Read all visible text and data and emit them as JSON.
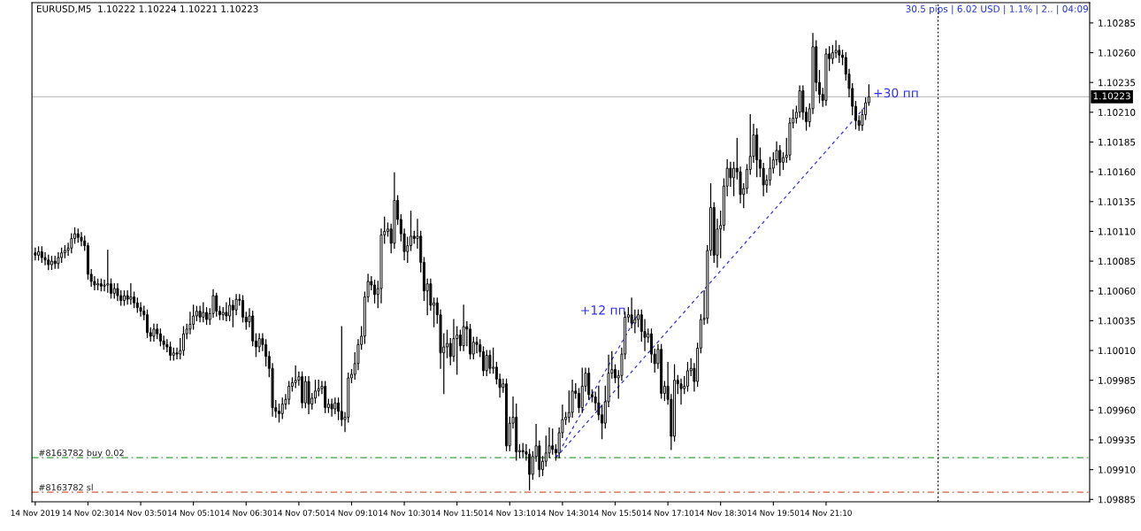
{
  "chart_data": {
    "type": "candlestick",
    "title": "EURUSD,M5  1.10222 1.10224 1.10221 1.10223",
    "x": [
      "2019-11-14T01:10",
      "2019-11-14T01:15",
      "2019-11-14T01:20",
      "2019-11-14T01:25",
      "2019-11-14T01:30",
      "2019-11-14T01:35",
      "2019-11-14T01:40",
      "2019-11-14T01:45",
      "2019-11-14T01:50",
      "2019-11-14T01:55",
      "2019-11-14T02:00",
      "2019-11-14T02:05",
      "2019-11-14T02:10",
      "2019-11-14T02:15",
      "2019-11-14T02:20",
      "2019-11-14T02:25",
      "2019-11-14T02:30",
      "2019-11-14T02:35",
      "2019-11-14T02:40",
      "2019-11-14T02:45",
      "2019-11-14T02:50",
      "2019-11-14T02:55",
      "2019-11-14T03:00",
      "2019-11-14T03:05",
      "2019-11-14T03:10",
      "2019-11-14T03:15",
      "2019-11-14T03:20",
      "2019-11-14T03:25",
      "2019-11-14T03:30",
      "2019-11-14T03:35",
      "2019-11-14T03:40",
      "2019-11-14T03:45",
      "2019-11-14T03:50",
      "2019-11-14T03:55",
      "2019-11-14T04:00",
      "2019-11-14T04:05",
      "2019-11-14T04:10",
      "2019-11-14T04:15",
      "2019-11-14T04:20",
      "2019-11-14T04:25",
      "2019-11-14T04:30",
      "2019-11-14T04:35",
      "2019-11-14T04:40",
      "2019-11-14T04:45",
      "2019-11-14T04:50",
      "2019-11-14T04:55",
      "2019-11-14T05:00",
      "2019-11-14T05:05",
      "2019-11-14T05:10",
      "2019-11-14T05:15",
      "2019-11-14T05:20",
      "2019-11-14T05:25",
      "2019-11-14T05:30",
      "2019-11-14T05:35",
      "2019-11-14T05:40",
      "2019-11-14T05:45",
      "2019-11-14T05:50",
      "2019-11-14T05:55",
      "2019-11-14T06:00",
      "2019-11-14T06:05",
      "2019-11-14T06:10",
      "2019-11-14T06:15",
      "2019-11-14T06:20",
      "2019-11-14T06:25",
      "2019-11-14T06:30",
      "2019-11-14T06:35",
      "2019-11-14T06:40",
      "2019-11-14T06:45",
      "2019-11-14T06:50",
      "2019-11-14T06:55",
      "2019-11-14T07:00",
      "2019-11-14T07:05",
      "2019-11-14T07:10",
      "2019-11-14T07:15",
      "2019-11-14T07:20",
      "2019-11-14T07:25",
      "2019-11-14T07:30",
      "2019-11-14T07:35",
      "2019-11-14T07:40",
      "2019-11-14T07:45",
      "2019-11-14T07:50",
      "2019-11-14T07:55",
      "2019-11-14T08:00",
      "2019-11-14T08:05",
      "2019-11-14T08:10",
      "2019-11-14T08:15",
      "2019-11-14T08:20",
      "2019-11-14T08:25",
      "2019-11-14T08:30",
      "2019-11-14T08:35",
      "2019-11-14T08:40",
      "2019-11-14T08:45",
      "2019-11-14T08:50",
      "2019-11-14T08:55",
      "2019-11-14T09:00",
      "2019-11-14T09:05",
      "2019-11-14T09:10",
      "2019-11-14T09:15",
      "2019-11-14T09:20",
      "2019-11-14T09:25",
      "2019-11-14T09:30",
      "2019-11-14T09:35",
      "2019-11-14T09:40",
      "2019-11-14T09:45",
      "2019-11-14T09:50",
      "2019-11-14T09:55",
      "2019-11-14T10:00",
      "2019-11-14T10:05",
      "2019-11-14T10:10",
      "2019-11-14T10:15",
      "2019-11-14T10:20",
      "2019-11-14T10:25",
      "2019-11-14T10:30",
      "2019-11-14T10:35",
      "2019-11-14T10:40",
      "2019-11-14T10:45",
      "2019-11-14T10:50",
      "2019-11-14T10:55",
      "2019-11-14T11:00",
      "2019-11-14T11:05",
      "2019-11-14T11:10",
      "2019-11-14T11:15",
      "2019-11-14T11:20",
      "2019-11-14T11:25",
      "2019-11-14T11:30",
      "2019-11-14T11:35",
      "2019-11-14T11:40",
      "2019-11-14T11:45",
      "2019-11-14T11:50",
      "2019-11-14T11:55",
      "2019-11-14T12:00",
      "2019-11-14T12:05",
      "2019-11-14T12:10",
      "2019-11-14T12:15",
      "2019-11-14T12:20",
      "2019-11-14T12:25",
      "2019-11-14T12:30",
      "2019-11-14T12:35",
      "2019-11-14T12:40",
      "2019-11-14T12:45",
      "2019-11-14T12:50",
      "2019-11-14T12:55",
      "2019-11-14T13:00",
      "2019-11-14T13:05",
      "2019-11-14T13:10",
      "2019-11-14T13:15",
      "2019-11-14T13:20",
      "2019-11-14T13:25",
      "2019-11-14T13:30",
      "2019-11-14T13:35",
      "2019-11-14T13:40",
      "2019-11-14T13:45",
      "2019-11-14T13:50",
      "2019-11-14T13:55",
      "2019-11-14T14:00",
      "2019-11-14T14:05",
      "2019-11-14T14:10",
      "2019-11-14T14:15",
      "2019-11-14T14:20",
      "2019-11-14T14:25",
      "2019-11-14T14:30",
      "2019-11-14T14:35",
      "2019-11-14T14:40",
      "2019-11-14T14:45",
      "2019-11-14T14:50",
      "2019-11-14T14:55",
      "2019-11-14T15:00",
      "2019-11-14T15:05",
      "2019-11-14T15:10",
      "2019-11-14T15:15",
      "2019-11-14T15:20",
      "2019-11-14T15:25",
      "2019-11-14T15:30",
      "2019-11-14T15:35",
      "2019-11-14T15:40",
      "2019-11-14T15:45",
      "2019-11-14T15:50",
      "2019-11-14T15:55",
      "2019-11-14T16:00",
      "2019-11-14T16:05",
      "2019-11-14T16:10",
      "2019-11-14T16:15",
      "2019-11-14T16:20",
      "2019-11-14T16:25",
      "2019-11-14T16:30",
      "2019-11-14T16:35",
      "2019-11-14T16:40",
      "2019-11-14T16:45",
      "2019-11-14T16:50",
      "2019-11-14T16:55",
      "2019-11-14T17:00",
      "2019-11-14T17:05",
      "2019-11-14T17:10",
      "2019-11-14T17:15",
      "2019-11-14T17:20",
      "2019-11-14T17:25",
      "2019-11-14T17:30",
      "2019-11-14T17:35",
      "2019-11-14T17:40",
      "2019-11-14T17:45",
      "2019-11-14T17:50",
      "2019-11-14T17:55",
      "2019-11-14T18:00",
      "2019-11-14T18:05",
      "2019-11-14T18:10",
      "2019-11-14T18:15",
      "2019-11-14T18:20",
      "2019-11-14T18:25",
      "2019-11-14T18:30",
      "2019-11-14T18:35",
      "2019-11-14T18:40",
      "2019-11-14T18:45",
      "2019-11-14T18:50",
      "2019-11-14T18:55",
      "2019-11-14T19:00",
      "2019-11-14T19:05",
      "2019-11-14T19:10",
      "2019-11-14T19:15",
      "2019-11-14T19:20",
      "2019-11-14T19:25",
      "2019-11-14T19:30",
      "2019-11-14T19:35",
      "2019-11-14T19:40",
      "2019-11-14T19:45",
      "2019-11-14T19:50",
      "2019-11-14T19:55",
      "2019-11-14T20:00",
      "2019-11-14T20:05",
      "2019-11-14T20:10",
      "2019-11-14T20:15",
      "2019-11-14T20:20",
      "2019-11-14T20:25",
      "2019-11-14T20:30",
      "2019-11-14T20:35",
      "2019-11-14T20:40",
      "2019-11-14T20:45",
      "2019-11-14T20:50",
      "2019-11-14T20:55",
      "2019-11-14T21:00",
      "2019-11-14T21:05",
      "2019-11-14T21:10",
      "2019-11-14T21:15",
      "2019-11-14T21:20",
      "2019-11-14T21:25",
      "2019-11-14T21:30",
      "2019-11-14T21:35",
      "2019-11-14T21:40",
      "2019-11-14T21:45",
      "2019-11-14T21:50",
      "2019-11-14T21:55",
      "2019-11-14T22:00",
      "2019-11-14T22:05",
      "2019-11-14T22:10",
      "2019-11-14T22:15"
    ],
    "ohlc": [
      [
        1.10092,
        1.10096,
        1.10086,
        1.1009
      ],
      [
        1.1009,
        1.10097,
        1.10086,
        1.10093
      ],
      [
        1.10093,
        1.10097,
        1.10084,
        1.10088
      ],
      [
        1.10088,
        1.10092,
        1.10082,
        1.10086
      ],
      [
        1.10086,
        1.1009,
        1.10078,
        1.10082
      ],
      [
        1.10082,
        1.10089,
        1.10078,
        1.10085
      ],
      [
        1.10085,
        1.10089,
        1.10079,
        1.10083
      ],
      [
        1.10083,
        1.10092,
        1.10079,
        1.10088
      ],
      [
        1.10088,
        1.10096,
        1.10084,
        1.10092
      ],
      [
        1.10092,
        1.10098,
        1.10088,
        1.10094
      ],
      [
        1.10094,
        1.101,
        1.1009,
        1.10096
      ],
      [
        1.10096,
        1.10108,
        1.10092,
        1.10104
      ],
      [
        1.10104,
        1.10113,
        1.101,
        1.10108
      ],
      [
        1.10108,
        1.10112,
        1.10101,
        1.10105
      ],
      [
        1.10105,
        1.10109,
        1.10098,
        1.10102
      ],
      [
        1.10102,
        1.10106,
        1.10094,
        1.10098
      ],
      [
        1.10098,
        1.101,
        1.1007,
        1.10074
      ],
      [
        1.10074,
        1.10078,
        1.10064,
        1.10068
      ],
      [
        1.10068,
        1.10072,
        1.10061,
        1.10065
      ],
      [
        1.10065,
        1.1007,
        1.10061,
        1.10066
      ],
      [
        1.10066,
        1.1007,
        1.1006,
        1.10064
      ],
      [
        1.10064,
        1.10069,
        1.1006,
        1.10065
      ],
      [
        1.10065,
        1.10094,
        1.10059,
        1.10066
      ],
      [
        1.10066,
        1.1007,
        1.10054,
        1.10058
      ],
      [
        1.10058,
        1.10066,
        1.10054,
        1.10062
      ],
      [
        1.10062,
        1.10066,
        1.10052,
        1.10056
      ],
      [
        1.10056,
        1.1006,
        1.10048,
        1.10052
      ],
      [
        1.10052,
        1.1006,
        1.10048,
        1.10056
      ],
      [
        1.10056,
        1.1006,
        1.10049,
        1.10053
      ],
      [
        1.10053,
        1.10066,
        1.10049,
        1.10055
      ],
      [
        1.10055,
        1.10059,
        1.10046,
        1.1005
      ],
      [
        1.1005,
        1.10054,
        1.10042,
        1.10046
      ],
      [
        1.10046,
        1.1005,
        1.10039,
        1.10043
      ],
      [
        1.10043,
        1.10047,
        1.10036,
        1.1004
      ],
      [
        1.1004,
        1.10044,
        1.10021,
        1.10025
      ],
      [
        1.10025,
        1.10029,
        1.10018,
        1.10022
      ],
      [
        1.10022,
        1.10032,
        1.10018,
        1.10028
      ],
      [
        1.10028,
        1.10032,
        1.1002,
        1.10024
      ],
      [
        1.10024,
        1.10028,
        1.10014,
        1.10018
      ],
      [
        1.10018,
        1.10022,
        1.10011,
        1.10015
      ],
      [
        1.10015,
        1.10019,
        1.10009,
        1.10013
      ],
      [
        1.10013,
        1.10017,
        1.10002,
        1.10006
      ],
      [
        1.10006,
        1.10012,
        1.10002,
        1.10008
      ],
      [
        1.10008,
        1.10012,
        1.10003,
        1.10007
      ],
      [
        1.10007,
        1.1002,
        1.10003,
        1.1001
      ],
      [
        1.1001,
        1.1003,
        1.10006,
        1.10024
      ],
      [
        1.10024,
        1.10032,
        1.1002,
        1.10028
      ],
      [
        1.10028,
        1.10042,
        1.10024,
        1.10032
      ],
      [
        1.10032,
        1.10048,
        1.10028,
        1.10039
      ],
      [
        1.10039,
        1.10047,
        1.10035,
        1.10043
      ],
      [
        1.10043,
        1.10047,
        1.10034,
        1.10038
      ],
      [
        1.10038,
        1.1005,
        1.10034,
        1.10042
      ],
      [
        1.10042,
        1.10046,
        1.10032,
        1.10036
      ],
      [
        1.10036,
        1.10045,
        1.10032,
        1.10041
      ],
      [
        1.10041,
        1.10061,
        1.10038,
        1.10056
      ],
      [
        1.10056,
        1.10058,
        1.10039,
        1.10043
      ],
      [
        1.10043,
        1.10047,
        1.10036,
        1.1004
      ],
      [
        1.1004,
        1.10046,
        1.10036,
        1.10042
      ],
      [
        1.10042,
        1.1005,
        1.10035,
        1.10039
      ],
      [
        1.10039,
        1.10054,
        1.10035,
        1.10048
      ],
      [
        1.10048,
        1.10052,
        1.1003,
        1.10044
      ],
      [
        1.10044,
        1.10057,
        1.1004,
        1.10053
      ],
      [
        1.10053,
        1.10057,
        1.10048,
        1.10052
      ],
      [
        1.10052,
        1.10056,
        1.10034,
        1.10038
      ],
      [
        1.10038,
        1.10042,
        1.10028,
        1.10034
      ],
      [
        1.10034,
        1.10045,
        1.1003,
        1.10039
      ],
      [
        1.10039,
        1.10043,
        1.10014,
        1.10018
      ],
      [
        1.10018,
        1.10024,
        1.10005,
        1.10013
      ],
      [
        1.10013,
        1.10024,
        1.10009,
        1.1002
      ],
      [
        1.1002,
        1.10024,
        1.1001,
        1.10015
      ],
      [
        1.10015,
        1.10019,
        1.09997,
        1.10005
      ],
      [
        1.10005,
        1.10009,
        1.09988,
        1.09995
      ],
      [
        1.09995,
        1.09999,
        1.09955,
        1.09962
      ],
      [
        1.09962,
        1.09968,
        1.09954,
        1.09959
      ],
      [
        1.09959,
        1.09965,
        1.0995,
        1.09957
      ],
      [
        1.09957,
        1.0997,
        1.09953,
        1.09965
      ],
      [
        1.09965,
        1.09973,
        1.09961,
        1.09969
      ],
      [
        1.09969,
        1.09984,
        1.09965,
        1.0998
      ],
      [
        1.0998,
        1.09987,
        1.09976,
        1.09983
      ],
      [
        1.09983,
        1.09997,
        1.09979,
        1.09985
      ],
      [
        1.09985,
        1.09992,
        1.09981,
        1.09988
      ],
      [
        1.09988,
        1.09992,
        1.09962,
        1.09966
      ],
      [
        1.09966,
        1.09988,
        1.09962,
        1.09984
      ],
      [
        1.09984,
        1.09988,
        1.09957,
        1.09965
      ],
      [
        1.09965,
        1.09974,
        1.09961,
        1.0997
      ],
      [
        1.0997,
        1.09985,
        1.09966,
        1.09976
      ],
      [
        1.09976,
        1.09985,
        1.09972,
        1.09978
      ],
      [
        1.09978,
        1.09984,
        1.09974,
        1.0998
      ],
      [
        1.0998,
        1.09984,
        1.09958,
        1.09962
      ],
      [
        1.09962,
        1.09969,
        1.09958,
        1.09965
      ],
      [
        1.09965,
        1.09969,
        1.09955,
        1.09961
      ],
      [
        1.09961,
        1.0997,
        1.09957,
        1.09966
      ],
      [
        1.09966,
        1.0997,
        1.09952,
        1.09959
      ],
      [
        1.09959,
        1.1003,
        1.09947,
        1.09952
      ],
      [
        1.09952,
        1.09958,
        1.09942,
        1.09954
      ],
      [
        1.09954,
        1.09991,
        1.0995,
        1.09987
      ],
      [
        1.09987,
        1.09994,
        1.09983,
        1.0999
      ],
      [
        1.0999,
        1.10008,
        1.09986,
        1.09999
      ],
      [
        1.09999,
        1.10019,
        1.09994,
        1.10015
      ],
      [
        1.10015,
        1.1003,
        1.10011,
        1.10022
      ],
      [
        1.10022,
        1.10059,
        1.10016,
        1.10055
      ],
      [
        1.10055,
        1.10074,
        1.10051,
        1.10068
      ],
      [
        1.10068,
        1.10072,
        1.10061,
        1.10065
      ],
      [
        1.10065,
        1.10069,
        1.1005,
        1.10057
      ],
      [
        1.10057,
        1.10068,
        1.10046,
        1.10062
      ],
      [
        1.10062,
        1.10112,
        1.1005,
        1.10107
      ],
      [
        1.10107,
        1.10122,
        1.101,
        1.1011
      ],
      [
        1.1011,
        1.10117,
        1.10106,
        1.10112
      ],
      [
        1.10112,
        1.10116,
        1.10092,
        1.101
      ],
      [
        1.101,
        1.10159,
        1.10096,
        1.10136
      ],
      [
        1.10136,
        1.1014,
        1.10116,
        1.1012
      ],
      [
        1.1012,
        1.10124,
        1.10102,
        1.10108
      ],
      [
        1.10108,
        1.10112,
        1.10086,
        1.10093
      ],
      [
        1.10093,
        1.10105,
        1.10084,
        1.10098
      ],
      [
        1.10098,
        1.10127,
        1.10094,
        1.10106
      ],
      [
        1.10106,
        1.1011,
        1.101,
        1.10104
      ],
      [
        1.10104,
        1.1012,
        1.10096,
        1.10106
      ],
      [
        1.10106,
        1.1011,
        1.10076,
        1.10084
      ],
      [
        1.10084,
        1.10088,
        1.10052,
        1.1006
      ],
      [
        1.1006,
        1.1007,
        1.1004,
        1.10066
      ],
      [
        1.10066,
        1.1007,
        1.10044,
        1.10048
      ],
      [
        1.10048,
        1.10054,
        1.1003,
        1.1005
      ],
      [
        1.1005,
        1.10054,
        1.10033,
        1.1004
      ],
      [
        1.1004,
        1.10044,
        1.09995,
        1.10008
      ],
      [
        1.10008,
        1.10024,
        1.09974,
        1.10013
      ],
      [
        1.10013,
        1.10027,
        1.10004,
        1.10016
      ],
      [
        1.10016,
        1.1002,
        1.09998,
        1.10005
      ],
      [
        1.10005,
        1.10036,
        1.10001,
        1.1002
      ],
      [
        1.1002,
        1.1003,
        1.0999,
        1.10023
      ],
      [
        1.10023,
        1.10027,
        1.1001,
        1.10014
      ],
      [
        1.10014,
        1.10048,
        1.1001,
        1.1003
      ],
      [
        1.1003,
        1.10034,
        1.10014,
        1.10028
      ],
      [
        1.10028,
        1.10032,
        1.10003,
        1.10007
      ],
      [
        1.10007,
        1.10021,
        1.10003,
        1.10017
      ],
      [
        1.10017,
        1.10021,
        1.10008,
        1.10015
      ],
      [
        1.10015,
        1.10019,
        1.10005,
        1.10009
      ],
      [
        1.10009,
        1.10013,
        1.09989,
        1.09993
      ],
      [
        1.09993,
        1.1001,
        1.09989,
        1.10006
      ],
      [
        1.10006,
        1.1001,
        1.09991,
        1.09995
      ],
      [
        1.09995,
        1.10012,
        1.09991,
        1.09996
      ],
      [
        1.09996,
        1.1,
        1.09982,
        1.09986
      ],
      [
        1.09986,
        1.0999,
        1.09971,
        1.09979
      ],
      [
        1.09979,
        1.09986,
        1.09975,
        1.09982
      ],
      [
        1.09982,
        1.09986,
        1.09926,
        1.0993
      ],
      [
        1.0993,
        1.09954,
        1.09926,
        1.09949
      ],
      [
        1.09949,
        1.09971,
        1.09945,
        1.09954
      ],
      [
        1.09954,
        1.09965,
        1.09918,
        1.09925
      ],
      [
        1.09925,
        1.09931,
        1.0992,
        1.09926
      ],
      [
        1.09926,
        1.09932,
        1.0992,
        1.09925
      ],
      [
        1.09925,
        1.09931,
        1.09918,
        1.09923
      ],
      [
        1.09923,
        1.09927,
        1.09893,
        1.09906
      ],
      [
        1.09906,
        1.09925,
        1.09902,
        1.09921
      ],
      [
        1.09921,
        1.09948,
        1.09917,
        1.0993
      ],
      [
        1.0993,
        1.09934,
        1.09904,
        1.0991
      ],
      [
        1.0991,
        1.09921,
        1.09905,
        1.09917
      ],
      [
        1.09917,
        1.09938,
        1.09913,
        1.09924
      ],
      [
        1.09924,
        1.09945,
        1.0992,
        1.0993
      ],
      [
        1.0993,
        1.09944,
        1.09923,
        1.09927
      ],
      [
        1.09927,
        1.09931,
        1.09918,
        1.09924
      ],
      [
        1.09924,
        1.09945,
        1.0992,
        1.09941
      ],
      [
        1.09941,
        1.09964,
        1.09937,
        1.09952
      ],
      [
        1.09952,
        1.09958,
        1.09948,
        1.09954
      ],
      [
        1.09954,
        1.09976,
        1.0995,
        1.09958
      ],
      [
        1.09958,
        1.09985,
        1.09954,
        1.09976
      ],
      [
        1.09976,
        1.09982,
        1.0997,
        1.09974
      ],
      [
        1.09974,
        1.09978,
        1.09958,
        1.09962
      ],
      [
        1.09962,
        1.09995,
        1.09958,
        1.0998
      ],
      [
        1.0998,
        1.09995,
        1.09976,
        1.09991
      ],
      [
        1.09991,
        1.09995,
        1.09969,
        1.09973
      ],
      [
        1.09973,
        1.09977,
        1.09967,
        1.09971
      ],
      [
        1.09971,
        1.09975,
        1.0996,
        1.09966
      ],
      [
        1.09966,
        1.0998,
        1.09952,
        1.09956
      ],
      [
        1.09956,
        1.09964,
        1.09936,
        1.09949
      ],
      [
        1.09949,
        1.0998,
        1.09945,
        1.09967
      ],
      [
        1.09967,
        1.10006,
        1.09963,
        1.09991
      ],
      [
        1.09991,
        1.10009,
        1.09987,
        1.09994
      ],
      [
        1.09994,
        1.09998,
        1.09983,
        1.09987
      ],
      [
        1.09987,
        1.09993,
        1.0997,
        1.09989
      ],
      [
        1.09989,
        1.10012,
        1.09985,
        1.10007
      ],
      [
        1.10007,
        1.10042,
        1.10003,
        1.10038
      ],
      [
        1.10038,
        1.10046,
        1.10034,
        1.1004
      ],
      [
        1.1004,
        1.10054,
        1.10029,
        1.10033
      ],
      [
        1.10033,
        1.10044,
        1.10025,
        1.10036
      ],
      [
        1.10036,
        1.10044,
        1.1003,
        1.1004
      ],
      [
        1.1004,
        1.10044,
        1.10018,
        1.10026
      ],
      [
        1.10026,
        1.10036,
        1.1001,
        1.10021
      ],
      [
        1.10021,
        1.10028,
        1.10017,
        1.10024
      ],
      [
        1.10024,
        1.10028,
        1.1,
        1.10007
      ],
      [
        1.10007,
        1.10011,
        1.09992,
        1.09999
      ],
      [
        1.09999,
        1.10015,
        1.09995,
        1.10011
      ],
      [
        1.10011,
        1.10015,
        1.0997,
        1.09974
      ],
      [
        1.09974,
        1.09984,
        1.09968,
        1.0998
      ],
      [
        1.0998,
        1.1,
        1.09965,
        1.09969
      ],
      [
        1.09969,
        1.09973,
        1.09927,
        1.09938
      ],
      [
        1.09938,
        1.09998,
        1.09934,
        1.09985
      ],
      [
        1.09985,
        1.09989,
        1.09974,
        1.09982
      ],
      [
        1.09982,
        1.09986,
        1.09965,
        1.09978
      ],
      [
        1.09978,
        1.09988,
        1.09974,
        1.0998
      ],
      [
        1.0998,
        1.1,
        1.09976,
        1.09993
      ],
      [
        1.09993,
        1.10003,
        1.09989,
        1.09995
      ],
      [
        1.09995,
        1.09999,
        1.09976,
        1.09984
      ],
      [
        1.09984,
        1.10016,
        1.0998,
        1.10012
      ],
      [
        1.10012,
        1.1004,
        1.10008,
        1.10036
      ],
      [
        1.10036,
        1.1006,
        1.10032,
        1.10037
      ],
      [
        1.10037,
        1.10098,
        1.10033,
        1.10094
      ],
      [
        1.10094,
        1.1015,
        1.1009,
        1.1013
      ],
      [
        1.1013,
        1.10134,
        1.10084,
        1.1009
      ],
      [
        1.1009,
        1.1012,
        1.1008,
        1.10112
      ],
      [
        1.10112,
        1.10127,
        1.10088,
        1.10115
      ],
      [
        1.10115,
        1.10154,
        1.10111,
        1.10148
      ],
      [
        1.10148,
        1.1017,
        1.1014,
        1.10163
      ],
      [
        1.10163,
        1.10168,
        1.10148,
        1.10155
      ],
      [
        1.10155,
        1.10168,
        1.1014,
        1.10163
      ],
      [
        1.10163,
        1.10188,
        1.10154,
        1.1016
      ],
      [
        1.1016,
        1.10164,
        1.10134,
        1.10141
      ],
      [
        1.10141,
        1.1015,
        1.1013,
        1.10146
      ],
      [
        1.10146,
        1.10166,
        1.10142,
        1.10162
      ],
      [
        1.10162,
        1.10208,
        1.10158,
        1.10173
      ],
      [
        1.10173,
        1.102,
        1.10168,
        1.10191
      ],
      [
        1.10191,
        1.10196,
        1.10156,
        1.1017
      ],
      [
        1.1017,
        1.1018,
        1.10156,
        1.10163
      ],
      [
        1.10163,
        1.10167,
        1.1014,
        1.10149
      ],
      [
        1.10149,
        1.10157,
        1.10143,
        1.10153
      ],
      [
        1.10153,
        1.10172,
        1.10149,
        1.10163
      ],
      [
        1.10163,
        1.10176,
        1.10159,
        1.1017
      ],
      [
        1.1017,
        1.10185,
        1.10166,
        1.10178
      ],
      [
        1.10178,
        1.10182,
        1.10157,
        1.10168
      ],
      [
        1.10168,
        1.10176,
        1.10162,
        1.10172
      ],
      [
        1.10172,
        1.10188,
        1.10168,
        1.10174
      ],
      [
        1.10174,
        1.10205,
        1.1017,
        1.10201
      ],
      [
        1.10201,
        1.10212,
        1.10197,
        1.10205
      ],
      [
        1.10205,
        1.10215,
        1.10201,
        1.1021
      ],
      [
        1.1021,
        1.10232,
        1.10206,
        1.10228
      ],
      [
        1.10228,
        1.10232,
        1.10204,
        1.1021
      ],
      [
        1.1021,
        1.10214,
        1.10195,
        1.10202
      ],
      [
        1.10202,
        1.10217,
        1.10198,
        1.10213
      ],
      [
        1.10213,
        1.10276,
        1.10209,
        1.10265
      ],
      [
        1.10265,
        1.1027,
        1.10228,
        1.10235
      ],
      [
        1.10235,
        1.10245,
        1.10218,
        1.10225
      ],
      [
        1.10225,
        1.1023,
        1.10215,
        1.1022
      ],
      [
        1.1022,
        1.10263,
        1.10216,
        1.10259
      ],
      [
        1.10259,
        1.10265,
        1.10245,
        1.10255
      ],
      [
        1.10255,
        1.10266,
        1.10251,
        1.1026
      ],
      [
        1.1026,
        1.1027,
        1.10256,
        1.10262
      ],
      [
        1.10262,
        1.10266,
        1.10252,
        1.10258
      ],
      [
        1.10258,
        1.10262,
        1.1025,
        1.10256
      ],
      [
        1.10256,
        1.1026,
        1.10237,
        1.10242
      ],
      [
        1.10242,
        1.10246,
        1.10223,
        1.1023
      ],
      [
        1.1023,
        1.10234,
        1.10208,
        1.10215
      ],
      [
        1.10215,
        1.10219,
        1.10196,
        1.10203
      ],
      [
        1.10203,
        1.10207,
        1.10195,
        1.10199
      ],
      [
        1.10199,
        1.10212,
        1.10195,
        1.10208
      ],
      [
        1.10208,
        1.10222,
        1.10204,
        1.10218
      ],
      [
        1.10218,
        1.10233,
        1.10216,
        1.10223
      ]
    ],
    "color": "#000000",
    "series": [
      {
        "type": "line",
        "name": "+12 пп",
        "color": "#3030ff",
        "line_style": "dashed",
        "x": [
          "2019-11-14T14:20",
          "2019-11-14T16:25"
        ],
        "values": [
          1.0992,
          1.10041
        ]
      },
      {
        "type": "line",
        "name": "+30 пп",
        "color": "#3030ff",
        "line_style": "dashed",
        "x": [
          "2019-11-14T14:20",
          "2019-11-14T22:10"
        ],
        "values": [
          1.0992,
          1.10215
        ]
      }
    ],
    "ref_lines": [
      {
        "axis": "y",
        "value": 1.10223,
        "label": "1.10223",
        "color": "#c0c0c0",
        "line_style": "solid"
      },
      {
        "axis": "y",
        "value": 1.0992,
        "label": "#8163782 buy 0.02",
        "color": "#3ca03c",
        "line_style": "dashdot"
      },
      {
        "axis": "y",
        "value": 1.09891,
        "label": "#8163782 sl",
        "color": "#d06040",
        "line_style": "dashdot"
      },
      {
        "axis": "x",
        "value": "2019-11-15T00:00",
        "color": "#000000",
        "line_style": "dotted"
      }
    ],
    "annotations": [
      "30.5 pips | 6.02 USD | 1.1% | 2.. | 04:09"
    ],
    "xlim": [
      "2019-11-14T01:05",
      "2019-11-15T03:50"
    ],
    "ylim": [
      1.09883,
      1.10302
    ],
    "xticks": [
      {
        "value": "2019-11-14T01:10",
        "label": "14 Nov 2019"
      },
      {
        "value": "2019-11-14T02:30",
        "label": "14 Nov 02:30"
      },
      {
        "value": "2019-11-14T03:50",
        "label": "14 Nov 03:50"
      },
      {
        "value": "2019-11-14T05:10",
        "label": "14 Nov 05:10"
      },
      {
        "value": "2019-11-14T06:30",
        "label": "14 Nov 06:30"
      },
      {
        "value": "2019-11-14T07:50",
        "label": "14 Nov 07:50"
      },
      {
        "value": "2019-11-14T09:10",
        "label": "14 Nov 09:10"
      },
      {
        "value": "2019-11-14T10:30",
        "label": "14 Nov 10:30"
      },
      {
        "value": "2019-11-14T11:50",
        "label": "14 Nov 11:50"
      },
      {
        "value": "2019-11-14T13:10",
        "label": "14 Nov 13:10"
      },
      {
        "value": "2019-11-14T14:30",
        "label": "14 Nov 14:30"
      },
      {
        "value": "2019-11-14T15:50",
        "label": "14 Nov 15:50"
      },
      {
        "value": "2019-11-14T17:10",
        "label": "14 Nov 17:10"
      },
      {
        "value": "2019-11-14T18:30",
        "label": "14 Nov 18:30"
      },
      {
        "value": "2019-11-14T19:50",
        "label": "14 Nov 19:50"
      },
      {
        "value": "2019-11-14T21:10",
        "label": "14 Nov 21:10"
      }
    ],
    "yticks": [
      {
        "value": 1.09885,
        "label": "1.09885"
      },
      {
        "value": 1.0991,
        "label": "1.09910"
      },
      {
        "value": 1.09935,
        "label": "1.09935"
      },
      {
        "value": 1.0996,
        "label": "1.09960"
      },
      {
        "value": 1.09985,
        "label": "1.09985"
      },
      {
        "value": 1.1001,
        "label": "1.10010"
      },
      {
        "value": 1.10035,
        "label": "1.10035"
      },
      {
        "value": 1.1006,
        "label": "1.10060"
      },
      {
        "value": 1.10085,
        "label": "1.10085"
      },
      {
        "value": 1.1011,
        "label": "1.10110"
      },
      {
        "value": 1.10135,
        "label": "1.10135"
      },
      {
        "value": 1.1016,
        "label": "1.10160"
      },
      {
        "value": 1.10185,
        "label": "1.10185"
      },
      {
        "value": 1.1021,
        "label": "1.10210"
      },
      {
        "value": 1.10235,
        "label": "1.10235"
      },
      {
        "value": 1.1026,
        "label": "1.10260"
      },
      {
        "value": 1.10285,
        "label": "1.10285"
      }
    ]
  }
}
